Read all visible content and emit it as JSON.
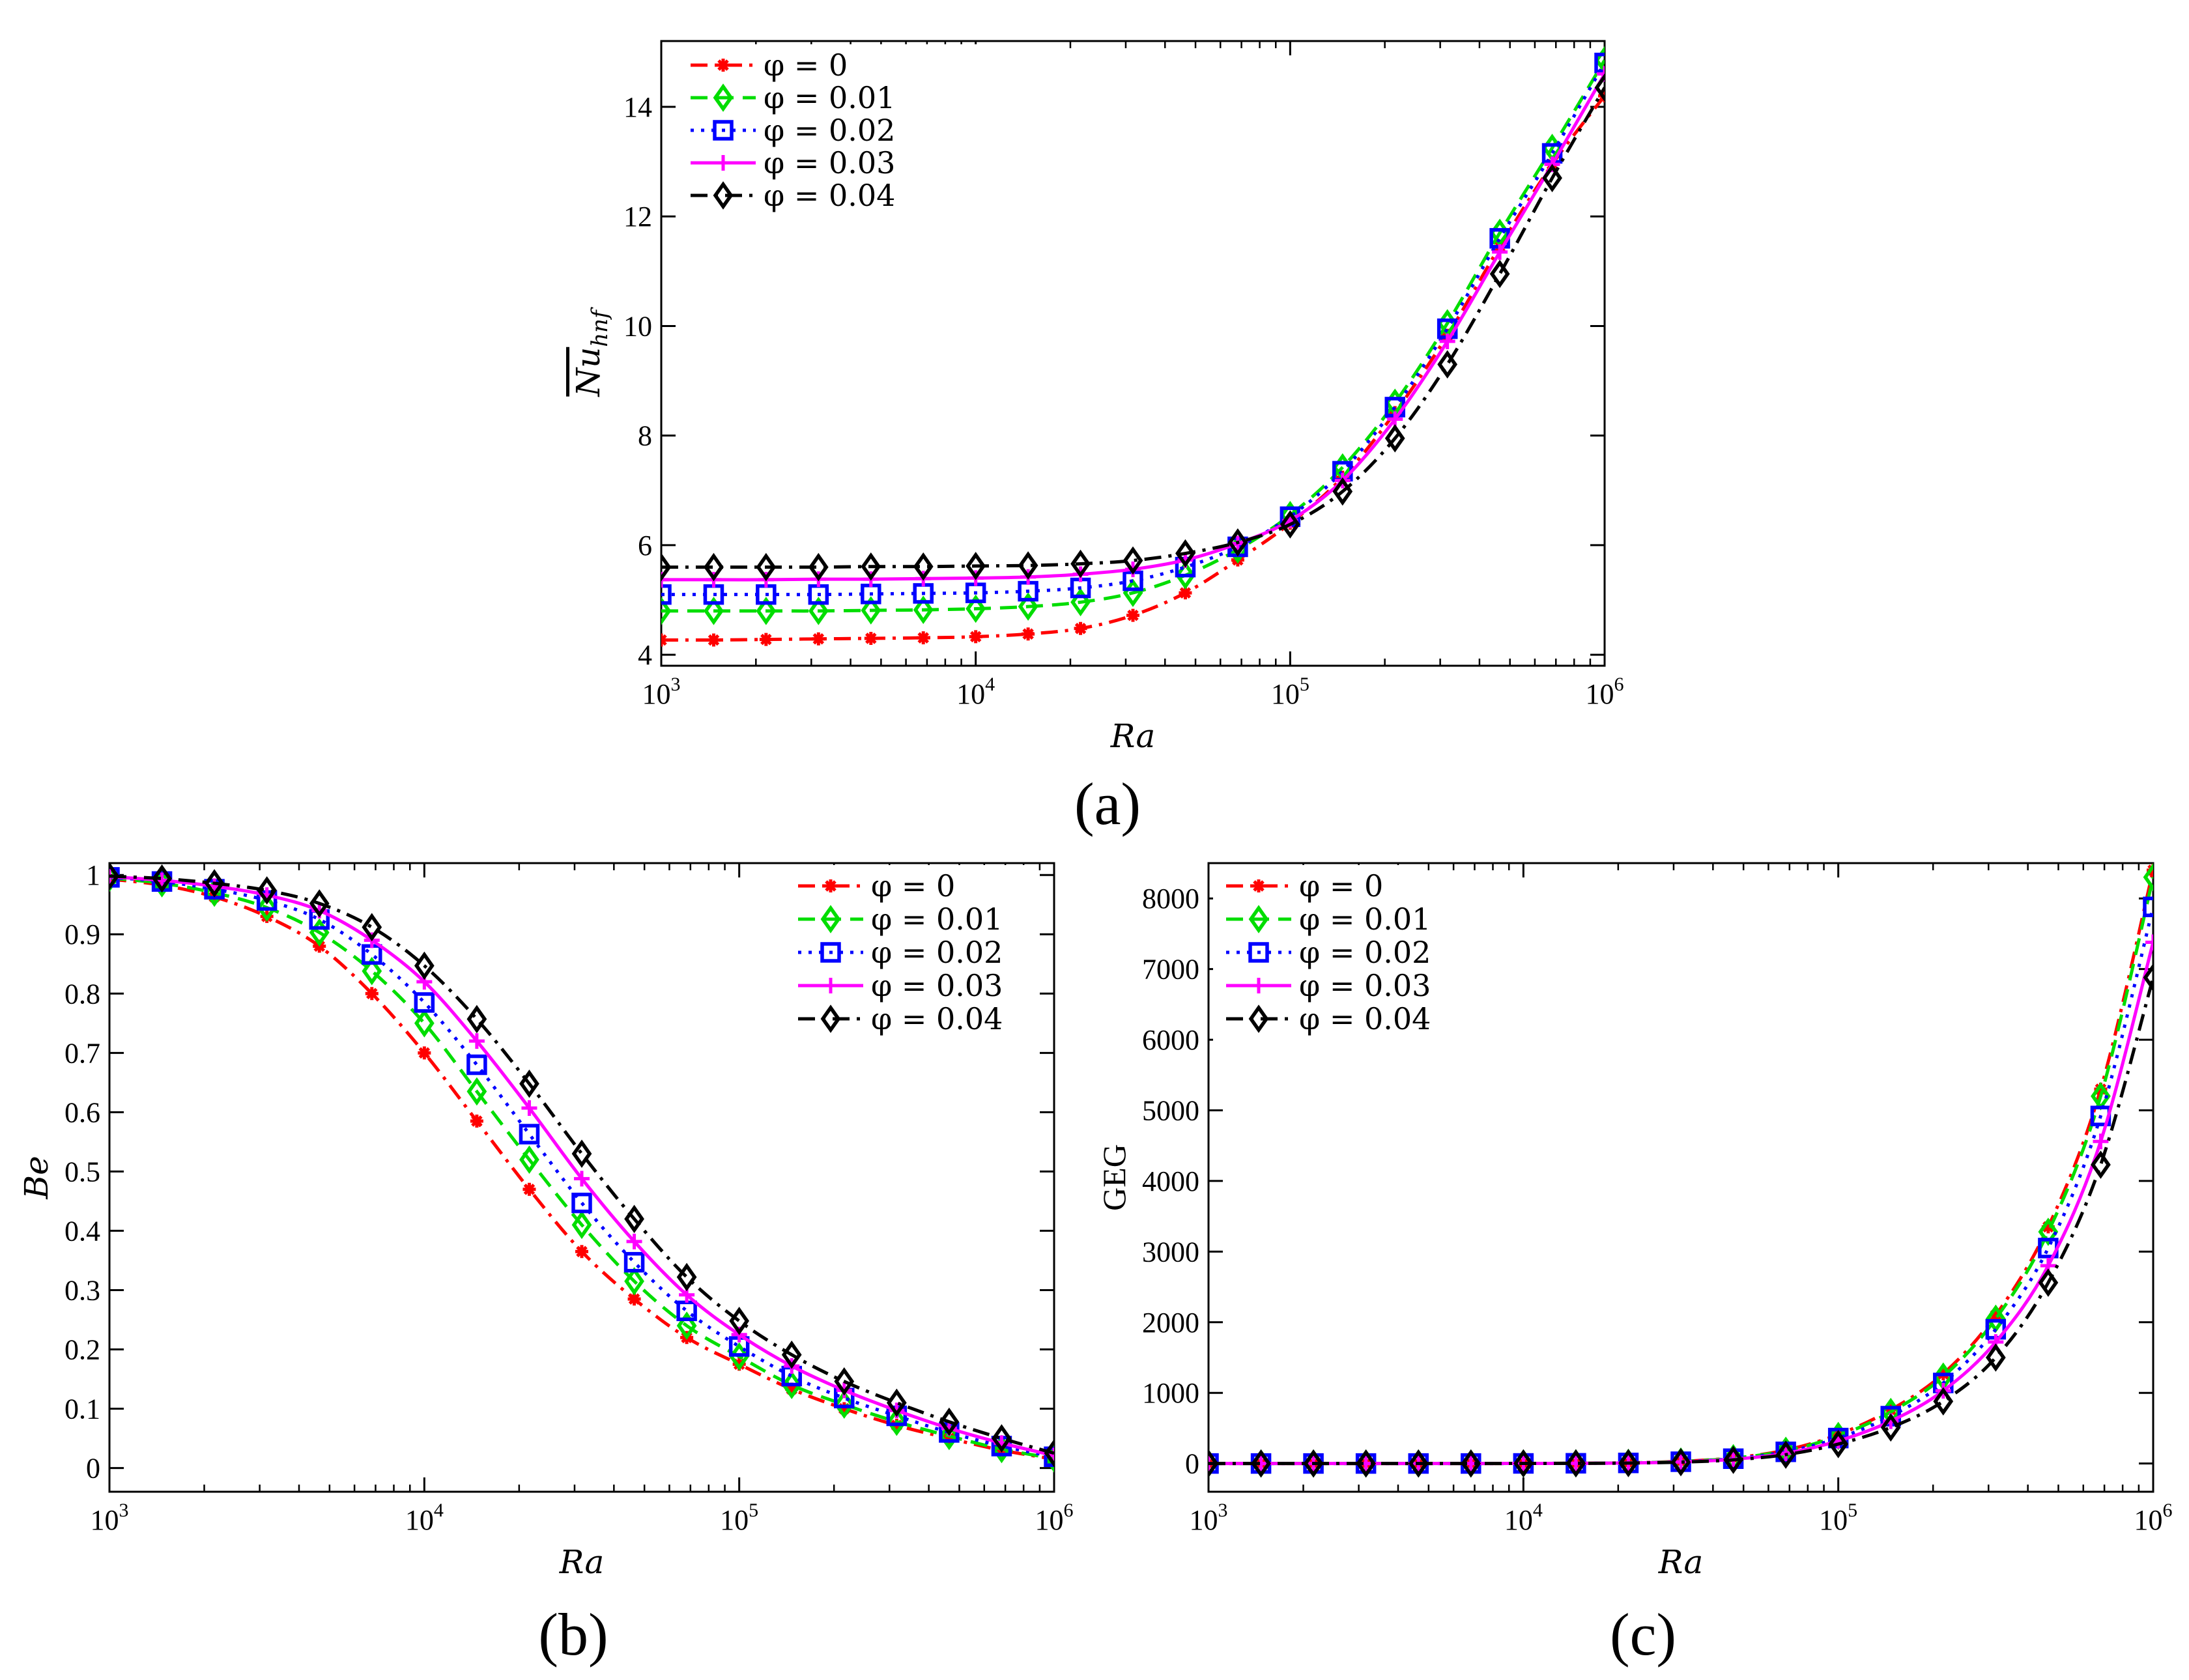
{
  "chart_data": [
    {
      "type": "line",
      "panel_label": "(a)",
      "xlabel": "Ra",
      "ylabel": "Nu",
      "ylabel_sub": "hnf",
      "xscale": "log",
      "xlim": [
        1000,
        1000000
      ],
      "ylim": [
        3.8,
        15.2
      ],
      "yticks": [
        4,
        6,
        8,
        10,
        12,
        14
      ],
      "ytick_labels": [
        "4",
        "6",
        "8",
        "10",
        "12",
        "14"
      ],
      "xtick_labels": [
        {
          "base": "10",
          "exp": "3",
          "value": 1000
        },
        {
          "base": "10",
          "exp": "4",
          "value": 10000
        },
        {
          "base": "10",
          "exp": "5",
          "value": 100000
        },
        {
          "base": "10",
          "exp": "6",
          "value": 1000000
        }
      ],
      "legend_position": "top-left",
      "x": [
        1000,
        1468,
        2154,
        3162,
        4642,
        6813,
        10000,
        14678,
        21544,
        31623,
        46416,
        68129,
        100000,
        146780,
        215440,
        316230,
        464160,
        681290,
        1000000
      ],
      "series": [
        {
          "name": "φ = 0",
          "color": "#ff0000",
          "dash": "dashdot",
          "marker": "star",
          "values": [
            4.27,
            4.27,
            4.28,
            4.29,
            4.3,
            4.31,
            4.33,
            4.38,
            4.48,
            4.72,
            5.13,
            5.73,
            6.4,
            7.24,
            8.42,
            9.83,
            11.45,
            12.95,
            14.2
          ]
        },
        {
          "name": "φ = 0.01",
          "color": "#00dd00",
          "dash": "dashed",
          "marker": "diamond",
          "values": [
            4.8,
            4.8,
            4.8,
            4.8,
            4.81,
            4.82,
            4.84,
            4.88,
            4.96,
            5.13,
            5.45,
            5.92,
            6.55,
            7.42,
            8.6,
            10.05,
            11.7,
            13.25,
            14.85
          ]
        },
        {
          "name": "φ = 0.02",
          "color": "#0000ff",
          "dash": "dotted",
          "marker": "square",
          "values": [
            5.1,
            5.1,
            5.1,
            5.1,
            5.11,
            5.12,
            5.13,
            5.16,
            5.22,
            5.35,
            5.6,
            5.97,
            6.52,
            7.35,
            8.52,
            9.95,
            11.6,
            13.15,
            14.8
          ]
        },
        {
          "name": "φ = 0.03",
          "color": "#ff00ff",
          "dash": "solid",
          "marker": "plus",
          "values": [
            5.37,
            5.37,
            5.37,
            5.38,
            5.38,
            5.39,
            5.4,
            5.42,
            5.47,
            5.56,
            5.73,
            6.03,
            6.45,
            7.18,
            8.3,
            9.72,
            11.35,
            12.95,
            14.6
          ]
        },
        {
          "name": "φ = 0.04",
          "color": "#000000",
          "dash": "dashdot",
          "marker": "diamond",
          "values": [
            5.6,
            5.6,
            5.6,
            5.6,
            5.61,
            5.61,
            5.62,
            5.63,
            5.66,
            5.72,
            5.85,
            6.05,
            6.38,
            6.98,
            7.95,
            9.3,
            10.95,
            12.7,
            14.35
          ]
        }
      ]
    },
    {
      "type": "line",
      "panel_label": "(b)",
      "xlabel": "Ra",
      "ylabel": "Be",
      "xscale": "log",
      "xlim": [
        1000,
        1000000
      ],
      "ylim": [
        -0.04,
        1.02
      ],
      "yticks": [
        0,
        0.1,
        0.2,
        0.3,
        0.4,
        0.5,
        0.6,
        0.7,
        0.8,
        0.9,
        1
      ],
      "ytick_labels": [
        "0",
        "0.1",
        "0.2",
        "0.3",
        "0.4",
        "0.5",
        "0.6",
        "0.7",
        "0.8",
        "0.9",
        "1"
      ],
      "xtick_labels": [
        {
          "base": "10",
          "exp": "3",
          "value": 1000
        },
        {
          "base": "10",
          "exp": "4",
          "value": 10000
        },
        {
          "base": "10",
          "exp": "5",
          "value": 100000
        },
        {
          "base": "10",
          "exp": "6",
          "value": 1000000
        }
      ],
      "legend_position": "top-right",
      "x": [
        1000,
        1468,
        2154,
        3162,
        4642,
        6813,
        10000,
        14678,
        21544,
        31623,
        46416,
        68129,
        100000,
        146780,
        215440,
        316230,
        464160,
        681290,
        1000000
      ],
      "series": [
        {
          "name": "φ = 0",
          "color": "#ff0000",
          "dash": "dashdot",
          "marker": "star",
          "values": [
            0.993,
            0.983,
            0.963,
            0.93,
            0.88,
            0.8,
            0.7,
            0.585,
            0.47,
            0.365,
            0.285,
            0.22,
            0.175,
            0.133,
            0.1,
            0.072,
            0.05,
            0.03,
            0.015
          ]
        },
        {
          "name": "φ = 0.01",
          "color": "#00dd00",
          "dash": "dashed",
          "marker": "diamond",
          "values": [
            0.995,
            0.986,
            0.97,
            0.945,
            0.903,
            0.838,
            0.75,
            0.635,
            0.52,
            0.41,
            0.315,
            0.24,
            0.188,
            0.14,
            0.107,
            0.078,
            0.054,
            0.032,
            0.016
          ]
        },
        {
          "name": "φ = 0.02",
          "color": "#0000ff",
          "dash": "dotted",
          "marker": "square",
          "values": [
            0.996,
            0.989,
            0.976,
            0.957,
            0.925,
            0.866,
            0.785,
            0.68,
            0.563,
            0.447,
            0.347,
            0.265,
            0.205,
            0.155,
            0.118,
            0.088,
            0.06,
            0.037,
            0.019
          ]
        },
        {
          "name": "φ = 0.03",
          "color": "#ff00ff",
          "dash": "solid",
          "marker": "plus",
          "values": [
            0.997,
            0.991,
            0.981,
            0.966,
            0.94,
            0.89,
            0.82,
            0.72,
            0.607,
            0.488,
            0.382,
            0.292,
            0.225,
            0.172,
            0.131,
            0.097,
            0.067,
            0.042,
            0.021
          ]
        },
        {
          "name": "φ = 0.04",
          "color": "#000000",
          "dash": "dashdot",
          "marker": "diamond",
          "values": [
            0.998,
            0.994,
            0.986,
            0.974,
            0.952,
            0.912,
            0.847,
            0.757,
            0.648,
            0.53,
            0.42,
            0.322,
            0.248,
            0.191,
            0.146,
            0.11,
            0.078,
            0.05,
            0.025
          ]
        }
      ]
    },
    {
      "type": "line",
      "panel_label": "(c)",
      "xlabel": "Ra",
      "ylabel": "GEG",
      "xscale": "log",
      "xlim": [
        1000,
        1000000
      ],
      "ylim": [
        -400,
        8500
      ],
      "yticks": [
        0,
        1000,
        2000,
        3000,
        4000,
        5000,
        6000,
        7000,
        8000
      ],
      "ytick_labels": [
        "0",
        "1000",
        "2000",
        "3000",
        "4000",
        "5000",
        "6000",
        "7000",
        "8000"
      ],
      "xtick_labels": [
        {
          "base": "10",
          "exp": "3",
          "value": 1000
        },
        {
          "base": "10",
          "exp": "4",
          "value": 10000
        },
        {
          "base": "10",
          "exp": "5",
          "value": 100000
        },
        {
          "base": "10",
          "exp": "6",
          "value": 1000000
        }
      ],
      "legend_position": "top-left",
      "x": [
        1000,
        1468,
        2154,
        3162,
        4642,
        6813,
        10000,
        14678,
        21544,
        31623,
        46416,
        68129,
        100000,
        146780,
        215440,
        316230,
        464160,
        681290,
        1000000
      ],
      "series": [
        {
          "name": "φ = 0",
          "color": "#ff0000",
          "dash": "dashdot",
          "marker": "star",
          "values": [
            0,
            0,
            0,
            0,
            0,
            0,
            1,
            3,
            10,
            30,
            80,
            190,
            410,
            760,
            1270,
            2100,
            3350,
            5300,
            8400
          ]
        },
        {
          "name": "φ = 0.01",
          "color": "#00dd00",
          "dash": "dashed",
          "marker": "diamond",
          "values": [
            0,
            0,
            0,
            0,
            0,
            0,
            1,
            3,
            9,
            28,
            75,
            180,
            390,
            730,
            1230,
            2050,
            3280,
            5200,
            8300
          ]
        },
        {
          "name": "φ = 0.02",
          "color": "#0000ff",
          "dash": "dotted",
          "marker": "square",
          "values": [
            0,
            0,
            0,
            0,
            0,
            0,
            1,
            3,
            8,
            25,
            68,
            165,
            360,
            670,
            1140,
            1900,
            3050,
            4920,
            7880
          ]
        },
        {
          "name": "φ = 0.03",
          "color": "#ff00ff",
          "dash": "solid",
          "marker": "plus",
          "values": [
            0,
            0,
            0,
            0,
            0,
            0,
            1,
            2,
            7,
            22,
            60,
            145,
            320,
            600,
            1030,
            1720,
            2800,
            4560,
            7380
          ]
        },
        {
          "name": "φ = 0.04",
          "color": "#000000",
          "dash": "dashdot",
          "marker": "diamond",
          "values": [
            0,
            0,
            0,
            0,
            0,
            0,
            1,
            2,
            6,
            19,
            52,
            125,
            275,
            510,
            880,
            1500,
            2560,
            4230,
            6880
          ]
        }
      ]
    }
  ]
}
